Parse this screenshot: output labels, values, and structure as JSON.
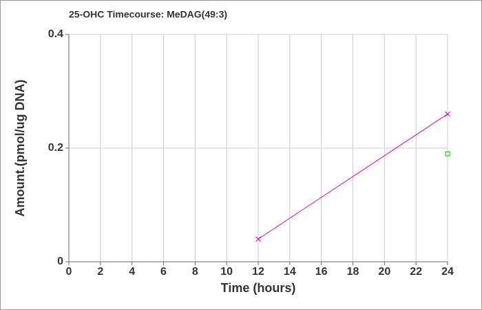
{
  "chart_data": {
    "type": "line",
    "title": "25-OHC Timecourse: MeDAG(49:3)",
    "x_label": "Time (hours)",
    "y_label": "Amount.(pmol/ug DNA)",
    "xlim": [
      0,
      24
    ],
    "xticks": [
      0,
      2,
      4,
      6,
      8,
      10,
      12,
      14,
      16,
      18,
      20,
      22,
      24
    ],
    "ylim": [
      0,
      0.4
    ],
    "yticks": [
      0,
      0.2,
      0.4
    ],
    "grid": true,
    "series": [
      {
        "color": "#cc00cc",
        "marker": "x",
        "x": [
          12,
          24
        ],
        "values": [
          0.04,
          0.26
        ]
      },
      {
        "color": "#00cc00",
        "marker": "square",
        "x": [
          24
        ],
        "values": [
          0.19
        ]
      }
    ]
  }
}
